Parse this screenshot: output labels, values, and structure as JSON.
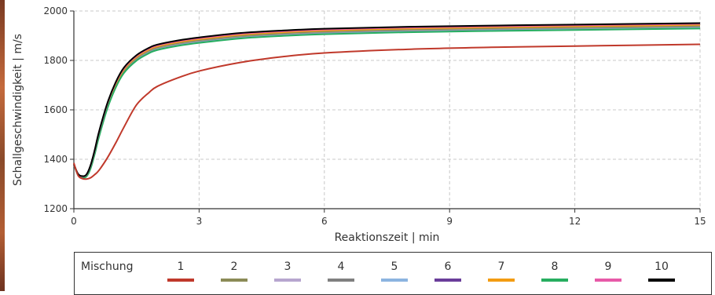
{
  "chart_data": {
    "type": "line",
    "xlabel": "Reaktionszeit | min",
    "ylabel": "Schallgeschwindigkeit | m/s",
    "xlim": [
      0,
      15
    ],
    "ylim": [
      1200,
      2000
    ],
    "xticks": [
      0,
      3,
      6,
      9,
      12,
      15
    ],
    "yticks": [
      1200,
      1400,
      1600,
      1800,
      2000
    ],
    "grid": true,
    "legend_title": "Mischung",
    "legend_position": "bottom",
    "x": [
      0,
      0.1,
      0.2,
      0.3,
      0.4,
      0.5,
      0.6,
      0.8,
      1.0,
      1.2,
      1.5,
      1.8,
      2.0,
      2.5,
      3.0,
      4.0,
      5.0,
      6.0,
      8.0,
      10.0,
      12.0,
      15.0
    ],
    "series": [
      {
        "name": "1",
        "color": "#c0392b",
        "values": [
          1385,
          1335,
          1322,
          1320,
          1325,
          1338,
          1355,
          1405,
          1465,
          1530,
          1620,
          1670,
          1695,
          1730,
          1757,
          1792,
          1815,
          1830,
          1845,
          1853,
          1858,
          1865
        ]
      },
      {
        "name": "2",
        "color": "#8b8b57",
        "values": [
          1380,
          1340,
          1330,
          1335,
          1370,
          1430,
          1500,
          1615,
          1700,
          1760,
          1810,
          1840,
          1853,
          1870,
          1882,
          1900,
          1910,
          1917,
          1925,
          1930,
          1934,
          1940
        ]
      },
      {
        "name": "3",
        "color": "#b7a6cf",
        "values": [
          1380,
          1339,
          1329,
          1334,
          1369,
          1429,
          1499,
          1614,
          1699,
          1759,
          1809,
          1839,
          1852,
          1869,
          1881,
          1899,
          1909,
          1916,
          1924,
          1929,
          1933,
          1939
        ]
      },
      {
        "name": "4",
        "color": "#808080",
        "values": [
          1380,
          1338,
          1328,
          1333,
          1367,
          1427,
          1497,
          1612,
          1697,
          1757,
          1807,
          1837,
          1850,
          1867,
          1879,
          1897,
          1907,
          1914,
          1922,
          1927,
          1931,
          1937
        ]
      },
      {
        "name": "5",
        "color": "#8cb4e0",
        "values": [
          1380,
          1337,
          1327,
          1331,
          1364,
          1423,
          1492,
          1607,
          1692,
          1752,
          1802,
          1832,
          1845,
          1862,
          1874,
          1892,
          1902,
          1909,
          1917,
          1922,
          1926,
          1932
        ]
      },
      {
        "name": "6",
        "color": "#6a3d9a",
        "values": [
          1380,
          1340,
          1331,
          1337,
          1373,
          1434,
          1505,
          1621,
          1706,
          1766,
          1816,
          1846,
          1859,
          1876,
          1888,
          1906,
          1916,
          1923,
          1931,
          1936,
          1940,
          1946
        ]
      },
      {
        "name": "7",
        "color": "#f39c12",
        "values": [
          1380,
          1339,
          1330,
          1335,
          1371,
          1432,
          1503,
          1619,
          1704,
          1764,
          1814,
          1844,
          1857,
          1874,
          1886,
          1904,
          1914,
          1921,
          1929,
          1934,
          1938,
          1944
        ]
      },
      {
        "name": "8",
        "color": "#27ae60",
        "values": [
          1380,
          1336,
          1326,
          1330,
          1362,
          1421,
          1489,
          1604,
          1689,
          1749,
          1799,
          1829,
          1842,
          1859,
          1871,
          1889,
          1899,
          1906,
          1914,
          1919,
          1923,
          1929
        ]
      },
      {
        "name": "9",
        "color": "#e75aa8",
        "values": [
          1380,
          1340,
          1331,
          1337,
          1374,
          1436,
          1507,
          1623,
          1708,
          1768,
          1818,
          1848,
          1861,
          1878,
          1890,
          1908,
          1918,
          1925,
          1933,
          1938,
          1942,
          1948
        ]
      },
      {
        "name": "10",
        "color": "#000000",
        "values": [
          1380,
          1341,
          1332,
          1338,
          1376,
          1438,
          1510,
          1626,
          1711,
          1771,
          1821,
          1851,
          1864,
          1881,
          1893,
          1911,
          1921,
          1928,
          1936,
          1941,
          1945,
          1951
        ]
      }
    ]
  }
}
